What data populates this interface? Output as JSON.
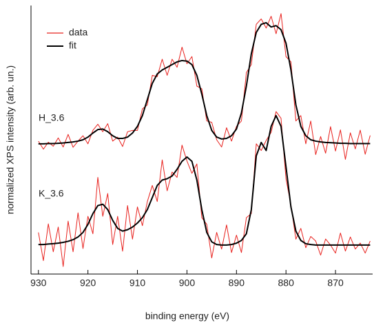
{
  "chart_data": {
    "type": "line",
    "x_label": "binding energy (eV)",
    "y_label": "normalized XPS intensity (arb. un.)",
    "xlim": [
      931.5,
      862.5
    ],
    "xticks": [
      930,
      920,
      910,
      900,
      890,
      880,
      870
    ],
    "ylim": [
      0,
      100
    ],
    "legend": "upper left",
    "series": [
      {
        "name": "data",
        "color": "#e8201c"
      },
      {
        "name": "fit",
        "color": "#000000"
      }
    ],
    "x": [
      930,
      929,
      928,
      927,
      926,
      925,
      924,
      923,
      922,
      921,
      920,
      919,
      918,
      917,
      916,
      915,
      914,
      913,
      912,
      911,
      910,
      909,
      908,
      907,
      906,
      905,
      904,
      903,
      902,
      901,
      900,
      899,
      898,
      897,
      896,
      895,
      894,
      893,
      892,
      891,
      890,
      889,
      888,
      887,
      886,
      885,
      884,
      883,
      882,
      881,
      880,
      879,
      878,
      877,
      876,
      875,
      874,
      873,
      872,
      871,
      870,
      869,
      868,
      867,
      866,
      865,
      864,
      863
    ],
    "spectra": [
      {
        "label": "H_3.6",
        "data": [
          49.5,
          46.5,
          49.1,
          47.6,
          50.7,
          47.3,
          52,
          47.2,
          49.5,
          51.5,
          48.5,
          53.5,
          55.8,
          53,
          56,
          49.5,
          51,
          47.5,
          53,
          53.5,
          53.5,
          61.5,
          63,
          74,
          73.5,
          80,
          74,
          80,
          77,
          84.5,
          78.3,
          81,
          70,
          69,
          57,
          56.5,
          50,
          47.3,
          54.5,
          49.5,
          55,
          57,
          75,
          78,
          93,
          95,
          91.6,
          96,
          89.5,
          97,
          81,
          79,
          57,
          59,
          48.5,
          57,
          44.5,
          51.2,
          45,
          54.9,
          45.8,
          53.7,
          42.7,
          52.6,
          46.6,
          53.6,
          44.6,
          51.6
        ],
        "fit": [
          48.5,
          48.5,
          48.6,
          48.6,
          48.7,
          48.8,
          49,
          49.2,
          49.5,
          50,
          51,
          52.5,
          53.8,
          54,
          53,
          51.5,
          50.5,
          50.5,
          51,
          52.5,
          55,
          59,
          65,
          71,
          74.5,
          76,
          77,
          78,
          79,
          79.5,
          79.3,
          78,
          74,
          67,
          59,
          53.5,
          51,
          50.3,
          50.5,
          51.5,
          54,
          60,
          70,
          82,
          90,
          93,
          93.6,
          92,
          92.5,
          91,
          86,
          76,
          63,
          55,
          51.5,
          50,
          49.5,
          49.2,
          49,
          48.9,
          48.8,
          48.7,
          48.7,
          48.6,
          48.6,
          48.6,
          48.6,
          48.6
        ]
      },
      {
        "label": "K_3.6",
        "data": [
          15.5,
          5,
          18.7,
          8.3,
          17.5,
          2.8,
          19.7,
          8.3,
          22.8,
          9.5,
          21.5,
          15,
          36,
          21.5,
          30,
          11,
          21.5,
          8.5,
          25.5,
          13,
          25,
          18,
          27,
          33,
          27,
          42.5,
          31,
          38,
          36,
          48,
          42.1,
          37.5,
          41,
          21,
          18.5,
          6,
          15.5,
          9.3,
          18.3,
          8,
          14.5,
          8,
          21,
          22.5,
          48.5,
          46,
          49.75,
          52.75,
          60.5,
          58,
          35.5,
          25.75,
          13,
          17,
          9.8,
          14,
          12.3,
          7.05,
          13.05,
          10.8,
          7.8,
          15.3,
          8.55,
          13.8,
          9.3,
          11.55,
          7.8,
          12.3
        ],
        "fit": [
          11,
          11,
          11.2,
          11.3,
          11.5,
          11.8,
          12.2,
          12.8,
          13.8,
          15.5,
          18.5,
          22.5,
          25.5,
          26,
          24,
          20,
          17,
          16,
          16.5,
          17.5,
          19,
          21,
          24,
          28.5,
          33,
          35,
          35.5,
          36.5,
          39,
          42,
          43.6,
          42,
          35,
          24,
          15.5,
          12,
          11,
          10.8,
          10.8,
          11,
          11.5,
          12.5,
          15,
          24,
          44,
          49,
          46,
          55,
          59,
          55,
          40,
          25,
          16,
          12.5,
          11.3,
          11,
          10.8,
          10.8,
          10.8,
          10.8,
          10.8,
          10.8,
          10.8,
          10.8,
          10.8,
          10.8,
          10.8,
          10.8
        ]
      }
    ]
  }
}
